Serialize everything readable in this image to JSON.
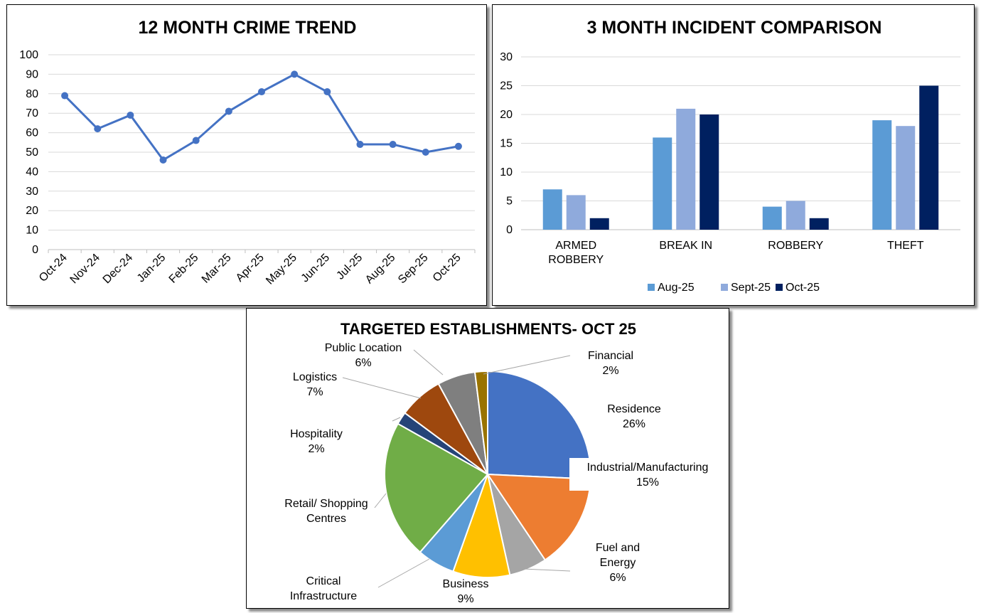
{
  "chart_data": [
    {
      "type": "line",
      "title": "12 MONTH CRIME TREND",
      "categories": [
        "Oct-24",
        "Nov-24",
        "Dec-24",
        "Jan-25",
        "Feb-25",
        "Mar-25",
        "Apr-25",
        "May-25",
        "Jun-25",
        "Jul-25",
        "Aug-25",
        "Sep-25",
        "Oct-25"
      ],
      "values": [
        79,
        62,
        69,
        46,
        56,
        71,
        81,
        90,
        81,
        54,
        54,
        50,
        53
      ],
      "ylim": [
        0,
        100
      ],
      "yticks": [
        "0",
        "10",
        "20",
        "30",
        "40",
        "50",
        "60",
        "70",
        "80",
        "90",
        "100"
      ],
      "grid": true,
      "color": "#4472C4"
    },
    {
      "type": "bar",
      "title": "3 MONTH INCIDENT COMPARISON",
      "categories": [
        "ARMED ROBBERY",
        "BREAK IN",
        "ROBBERY",
        "THEFT"
      ],
      "series": [
        {
          "name": "Aug-25",
          "values": [
            7,
            16,
            4,
            19
          ],
          "color": "#5B9BD5"
        },
        {
          "name": "Sept-25",
          "values": [
            6,
            21,
            5,
            18
          ],
          "color": "#8FAADC"
        },
        {
          "name": "Oct-25",
          "values": [
            2,
            20,
            2,
            25
          ],
          "color": "#002060"
        }
      ],
      "ylim": [
        0,
        30
      ],
      "yticks": [
        "0",
        "5",
        "10",
        "15",
        "20",
        "25",
        "30"
      ],
      "grid": true,
      "legend_position": "bottom"
    },
    {
      "type": "pie",
      "title": "TARGETED ESTABLISHMENTS- OCT 25",
      "slices": [
        {
          "label": "Residence",
          "pct_label": "26%",
          "value": 26,
          "color": "#4472C4"
        },
        {
          "label": "Industrial/Manufacturing",
          "pct_label": "15%",
          "value": 15,
          "color": "#ED7D31"
        },
        {
          "label": "Fuel and Energy",
          "pct_label": "6%",
          "value": 6,
          "color": "#A5A5A5"
        },
        {
          "label": "Business",
          "pct_label": "9%",
          "value": 9,
          "color": "#FFC000"
        },
        {
          "label": "Critical Infrastructure",
          "pct_label": "",
          "value": 6,
          "color": "#5B9BD5"
        },
        {
          "label": "Retail/ Shopping Centres",
          "pct_label": "",
          "value": 22,
          "color": "#70AD47"
        },
        {
          "label": "Hospitality",
          "pct_label": "2%",
          "value": 2,
          "color": "#264478"
        },
        {
          "label": "Logistics",
          "pct_label": "7%",
          "value": 7,
          "color": "#9E480E"
        },
        {
          "label": "Public Location",
          "pct_label": "6%",
          "value": 6,
          "color": "#7F7F7F"
        },
        {
          "label": "Financial",
          "pct_label": "2%",
          "value": 2,
          "color": "#997300"
        }
      ]
    }
  ]
}
